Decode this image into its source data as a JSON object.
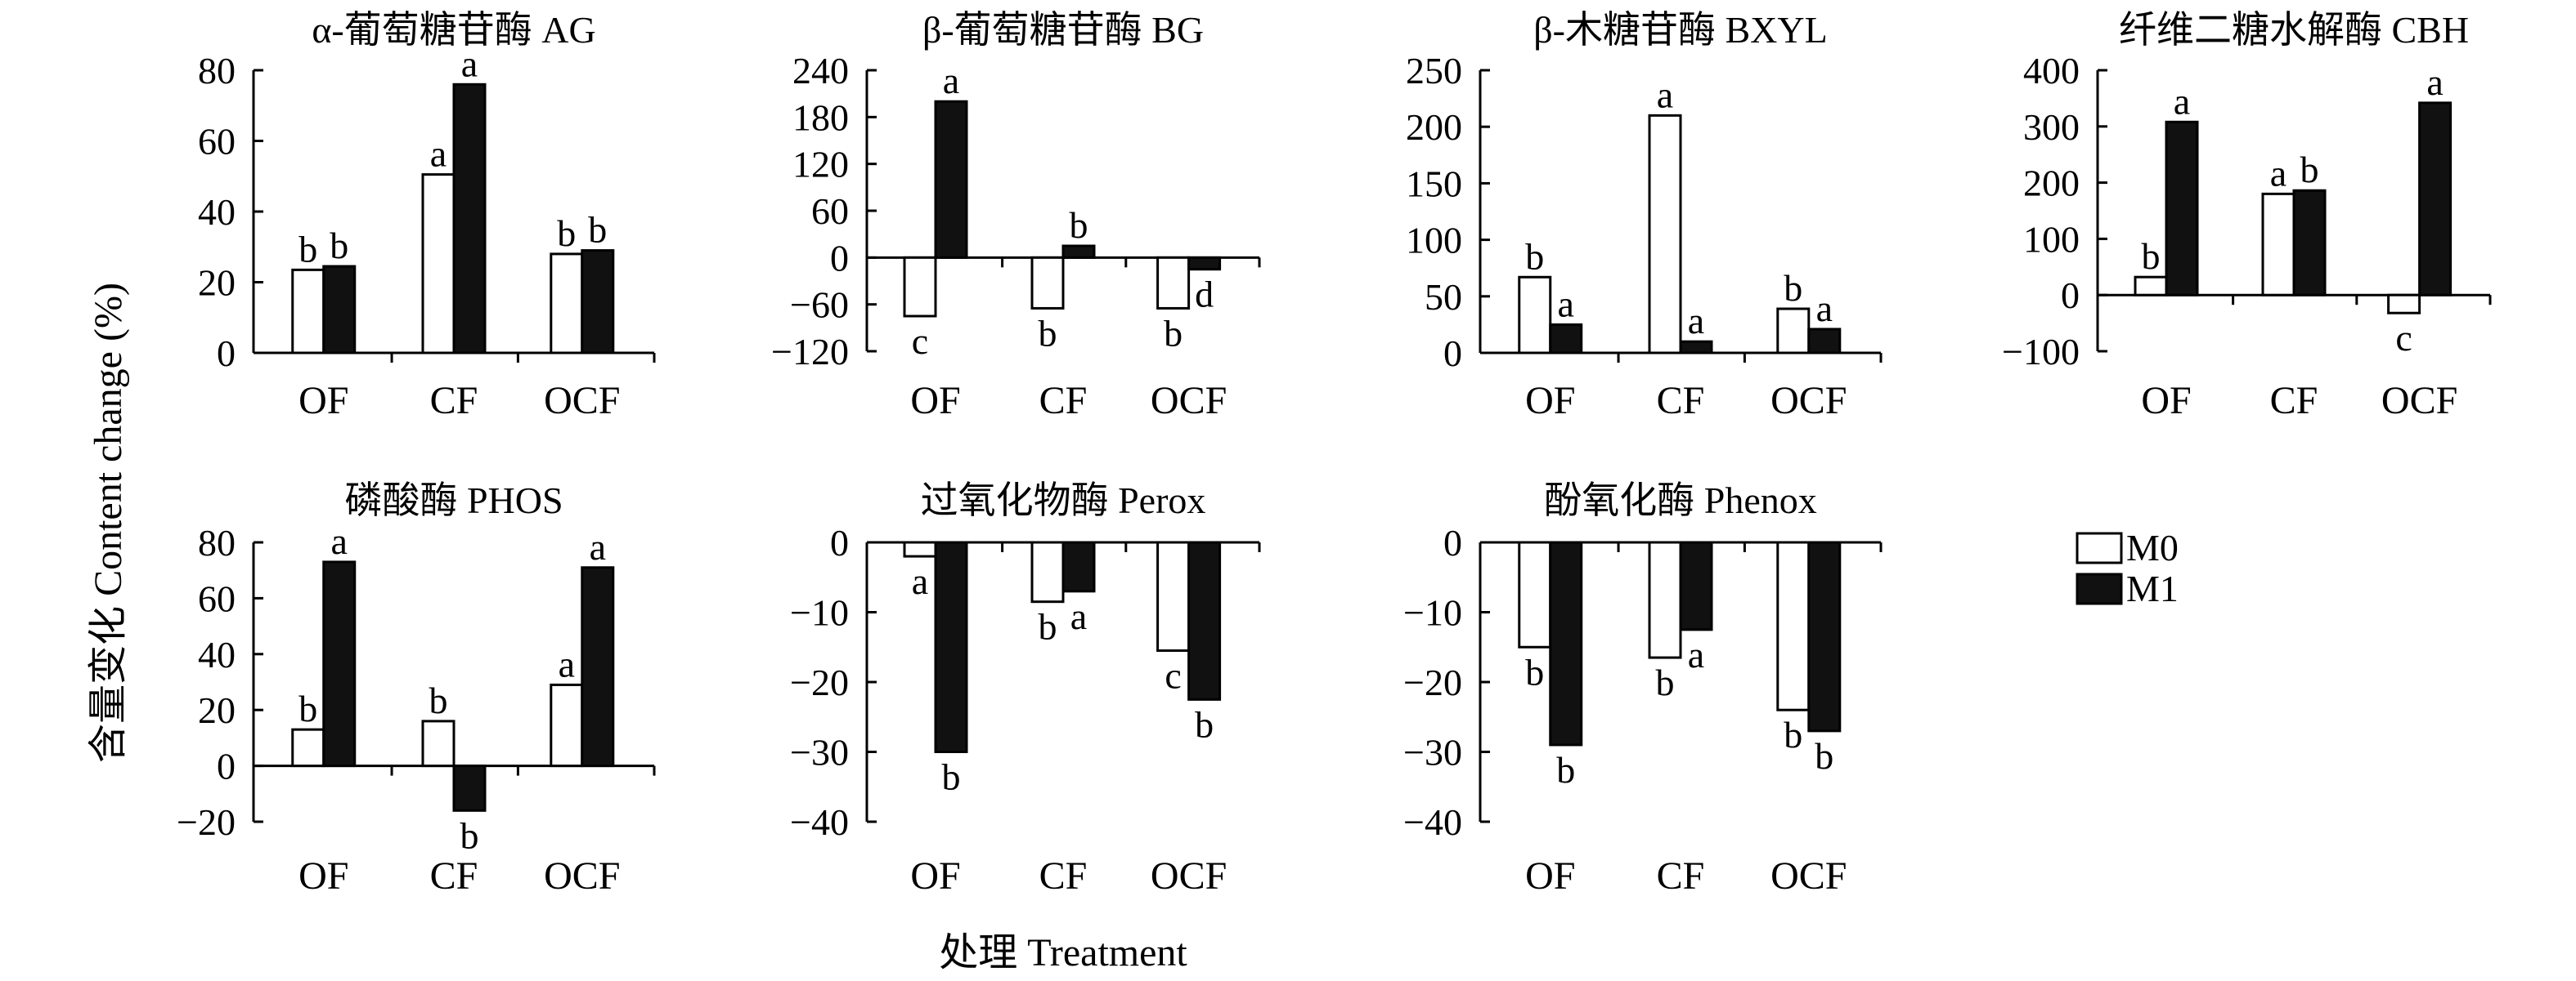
{
  "legend": {
    "items": [
      {
        "label": "M0",
        "fill": "#ffffff"
      },
      {
        "label": "M1",
        "fill": "#111111"
      }
    ]
  },
  "y_axis_title": "含量变化 Content change (%)",
  "x_axis_title": "处理 Treatment",
  "chart_data": [
    {
      "type": "bar",
      "title": "α-葡萄糖苷酶 AG",
      "categories": [
        "OF",
        "CF",
        "OCF"
      ],
      "ylim": [
        0,
        80
      ],
      "yticks": [
        0,
        20,
        40,
        60,
        80
      ],
      "series": [
        {
          "name": "M0",
          "values": [
            23.5,
            50.5,
            28
          ],
          "labels": [
            "b",
            "a",
            "b"
          ]
        },
        {
          "name": "M1",
          "values": [
            24.5,
            76,
            29
          ],
          "labels": [
            "b",
            "a",
            "b"
          ]
        }
      ]
    },
    {
      "type": "bar",
      "title": "β-葡萄糖苷酶 BG",
      "categories": [
        "OF",
        "CF",
        "OCF"
      ],
      "ylim": [
        -120,
        240
      ],
      "yticks": [
        -120,
        -60,
        0,
        60,
        120,
        180,
        240
      ],
      "series": [
        {
          "name": "M0",
          "values": [
            -75,
            -65,
            -65
          ],
          "labels": [
            "c",
            "b",
            "b"
          ]
        },
        {
          "name": "M1",
          "values": [
            200,
            15,
            -15
          ],
          "labels": [
            "a",
            "b",
            "d"
          ]
        }
      ]
    },
    {
      "type": "bar",
      "title": "β-木糖苷酶 BXYL",
      "categories": [
        "OF",
        "CF",
        "OCF"
      ],
      "ylim": [
        0,
        250
      ],
      "yticks": [
        0,
        50,
        100,
        150,
        200,
        250
      ],
      "series": [
        {
          "name": "M0",
          "values": [
            67,
            210,
            39
          ],
          "labels": [
            "b",
            "a",
            "b"
          ]
        },
        {
          "name": "M1",
          "values": [
            25,
            10,
            21
          ],
          "labels": [
            "a",
            "a",
            "a"
          ]
        }
      ]
    },
    {
      "type": "bar",
      "title": "纤维二糖水解酶 CBH",
      "categories": [
        "OF",
        "CF",
        "OCF"
      ],
      "ylim": [
        -100,
        400
      ],
      "yticks": [
        -100,
        0,
        100,
        200,
        300,
        400
      ],
      "series": [
        {
          "name": "M0",
          "values": [
            32,
            180,
            -32
          ],
          "labels": [
            "b",
            "a",
            "c"
          ]
        },
        {
          "name": "M1",
          "values": [
            308,
            186,
            342
          ],
          "labels": [
            "a",
            "b",
            "a"
          ]
        }
      ]
    },
    {
      "type": "bar",
      "title": "磷酸酶 PHOS",
      "categories": [
        "OF",
        "CF",
        "OCF"
      ],
      "ylim": [
        -20,
        80
      ],
      "yticks": [
        -20,
        0,
        20,
        40,
        60,
        80
      ],
      "series": [
        {
          "name": "M0",
          "values": [
            13,
            16,
            29
          ],
          "labels": [
            "b",
            "b",
            "a"
          ]
        },
        {
          "name": "M1",
          "values": [
            73,
            -16,
            71
          ],
          "labels": [
            "a",
            "b",
            "a"
          ]
        }
      ]
    },
    {
      "type": "bar",
      "title": "过氧化物酶 Perox",
      "categories": [
        "OF",
        "CF",
        "OCF"
      ],
      "ylim": [
        -40,
        0
      ],
      "yticks": [
        -40,
        -30,
        -20,
        -10,
        0
      ],
      "series": [
        {
          "name": "M0",
          "values": [
            -2,
            -8.5,
            -15.5
          ],
          "labels": [
            "a",
            "b",
            "c"
          ]
        },
        {
          "name": "M1",
          "values": [
            -30,
            -7,
            -22.5
          ],
          "labels": [
            "b",
            "a",
            "b"
          ]
        }
      ]
    },
    {
      "type": "bar",
      "title": "酚氧化酶 Phenox",
      "categories": [
        "OF",
        "CF",
        "OCF"
      ],
      "ylim": [
        -40,
        0
      ],
      "yticks": [
        -40,
        -30,
        -20,
        -10,
        0
      ],
      "series": [
        {
          "name": "M0",
          "values": [
            -15,
            -16.5,
            -24
          ],
          "labels": [
            "b",
            "b",
            "b"
          ]
        },
        {
          "name": "M1",
          "values": [
            -29,
            -12.5,
            -27
          ],
          "labels": [
            "b",
            "a",
            "b"
          ]
        }
      ]
    }
  ]
}
